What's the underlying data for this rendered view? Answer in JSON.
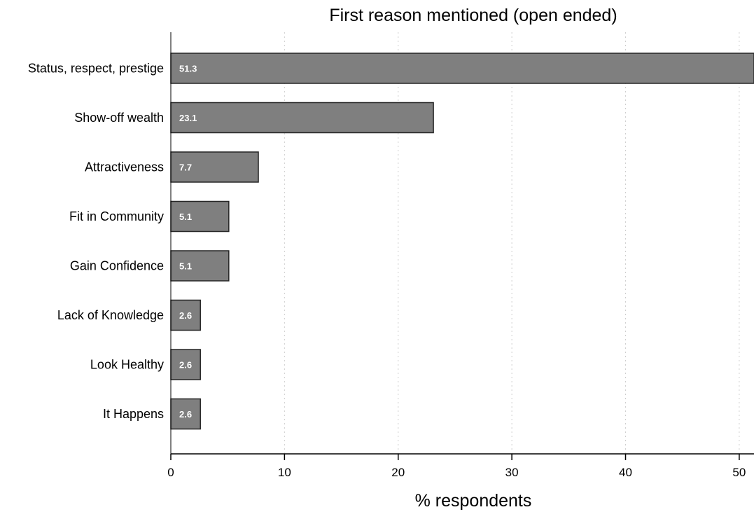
{
  "chart_data": {
    "type": "bar",
    "orientation": "horizontal",
    "title": "First reason mentioned (open ended)",
    "xlabel": "% respondents",
    "ylabel": "",
    "categories": [
      "Status, respect, prestige",
      "Show-off wealth",
      "Attractiveness",
      "Fit in Community",
      "Gain Confidence",
      "Lack of Knowledge",
      "Look Healthy",
      "It Happens"
    ],
    "values": [
      51.3,
      23.1,
      7.7,
      5.1,
      5.1,
      2.6,
      2.6,
      2.6
    ],
    "data_labels": [
      "51.3",
      "23.1",
      "7.7",
      "5.1",
      "5.1",
      "2.6",
      "2.6",
      "2.6"
    ],
    "xlim": [
      0,
      51.3
    ],
    "xticks": [
      0,
      10,
      20,
      30,
      40,
      50
    ],
    "xtick_labels": [
      "0",
      "10",
      "20",
      "30",
      "40",
      "50"
    ],
    "grid": "vertical dotted",
    "legend": "none",
    "colors": {
      "bar_fill": "#7f7f7f",
      "bar_stroke": "#262626",
      "grid": "#cfcfcf",
      "text": "#000000",
      "data_label": "#ffffff"
    }
  }
}
